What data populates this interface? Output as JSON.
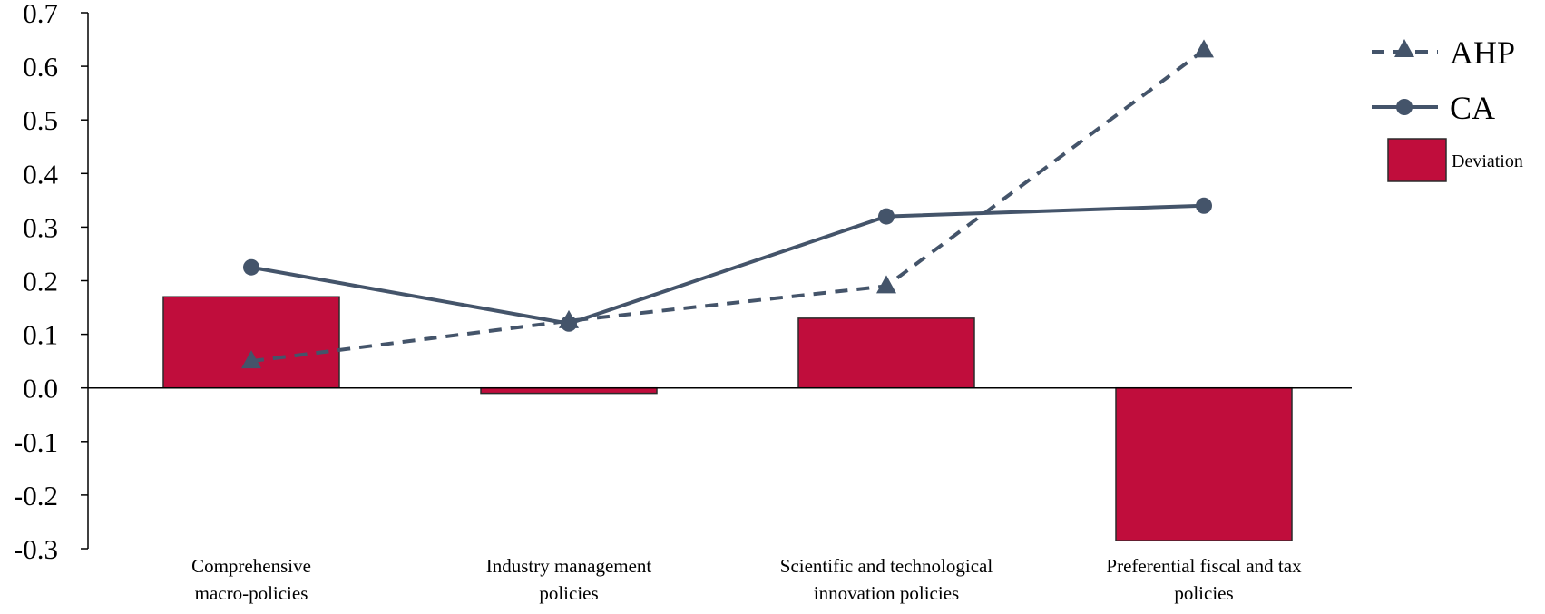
{
  "chart_data": {
    "type": "bar",
    "categories": [
      [
        "Comprehensive",
        "macro-policies"
      ],
      [
        "Industry management",
        "policies"
      ],
      [
        "Scientific and technological",
        "innovation policies"
      ],
      [
        "Preferential fiscal and tax",
        "policies"
      ]
    ],
    "ylim": [
      -0.3,
      0.7
    ],
    "yticks": [
      "0.7",
      "0.6",
      "0.5",
      "0.4",
      "0.3",
      "0.2",
      "0.1",
      "0.0",
      "-0.1",
      "-0.2",
      "-0.3"
    ],
    "ytick_values": [
      0.7,
      0.6,
      0.5,
      0.4,
      0.3,
      0.2,
      0.1,
      0.0,
      -0.1,
      -0.2,
      -0.3
    ],
    "series": [
      {
        "name": "AHP",
        "type": "line",
        "style": "dashed",
        "marker": "triangle",
        "values": [
          0.05,
          0.125,
          0.19,
          0.63
        ]
      },
      {
        "name": "CA",
        "type": "line",
        "style": "solid",
        "marker": "circle",
        "values": [
          0.225,
          0.12,
          0.32,
          0.34
        ]
      },
      {
        "name": "Deviation",
        "type": "bar",
        "values": [
          0.17,
          -0.01,
          0.13,
          -0.285
        ]
      }
    ],
    "colors": {
      "line": "#44546a",
      "bar": "#c00d3c",
      "bar_edge": "#2b2b2b",
      "axis": "#000000"
    },
    "legend": {
      "placement": "top-right",
      "labels": [
        "AHP",
        "CA",
        "Deviation"
      ]
    },
    "title": "",
    "xlabel": "",
    "ylabel": ""
  }
}
